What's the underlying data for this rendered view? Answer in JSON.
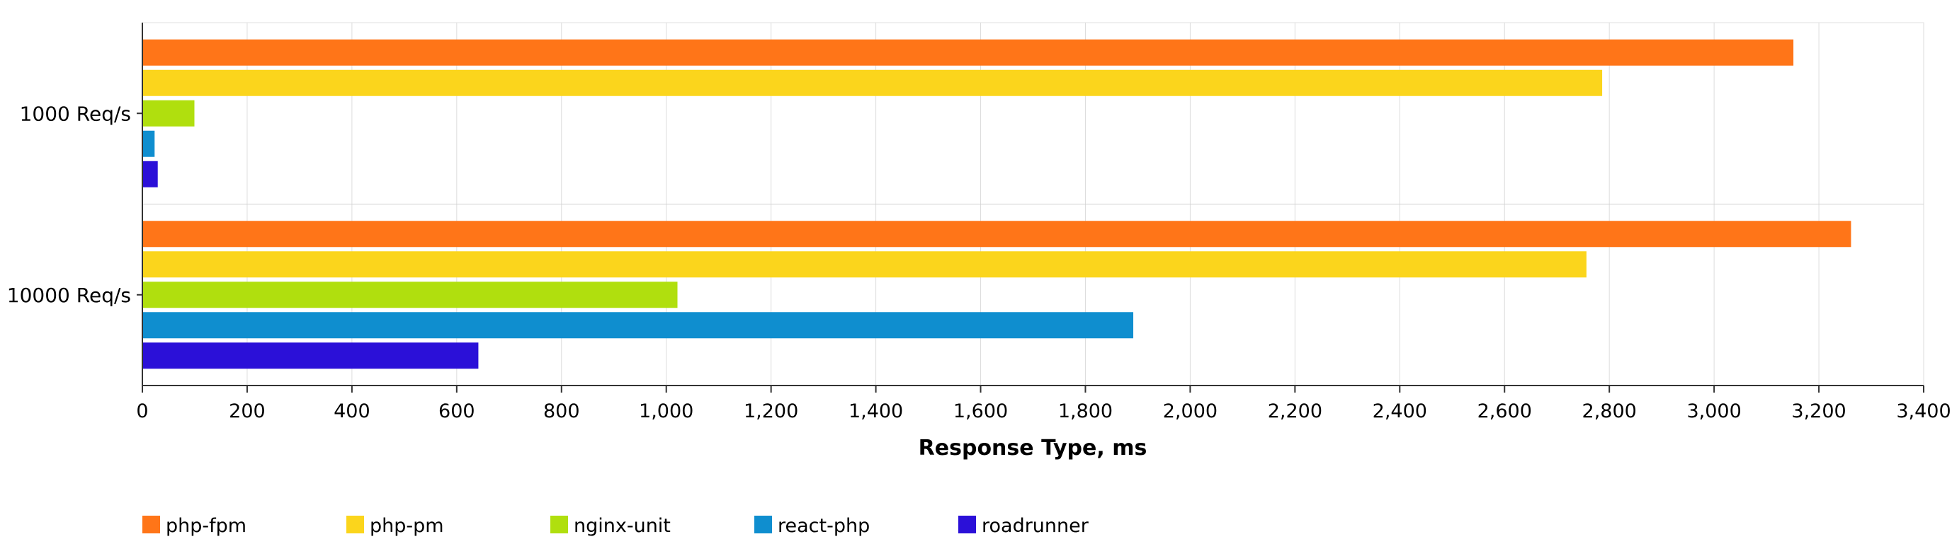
{
  "chart_data": {
    "type": "bar",
    "orientation": "horizontal",
    "title": "",
    "xlabel": "Response Type, ms",
    "ylabel": "",
    "xlim": [
      0,
      3400
    ],
    "x_ticks": [
      0,
      200,
      400,
      600,
      800,
      1000,
      1200,
      1400,
      1600,
      1800,
      2000,
      2200,
      2400,
      2600,
      2800,
      3000,
      3200,
      3400
    ],
    "x_tick_labels": [
      "0",
      "200",
      "400",
      "600",
      "800",
      "1,000",
      "1,200",
      "1,400",
      "1,600",
      "1,800",
      "2,000",
      "2,200",
      "2,400",
      "2,600",
      "2,800",
      "3,000",
      "3,200",
      "3,400"
    ],
    "categories": [
      "1000 Req/s",
      "10000 Req/s"
    ],
    "grid": true,
    "legend_position": "bottom",
    "series": [
      {
        "name": "php-fpm",
        "color": "#ff7518",
        "values": [
          3150,
          3260
        ]
      },
      {
        "name": "php-pm",
        "color": "#fbd51c",
        "values": [
          2785,
          2755
        ]
      },
      {
        "name": "nginx-unit",
        "color": "#b0df0e",
        "values": [
          98,
          1020
        ]
      },
      {
        "name": "react-php",
        "color": "#0f8ecf",
        "values": [
          22,
          1890
        ]
      },
      {
        "name": "roadrunner",
        "color": "#2b10d8",
        "values": [
          28,
          640
        ]
      }
    ]
  }
}
